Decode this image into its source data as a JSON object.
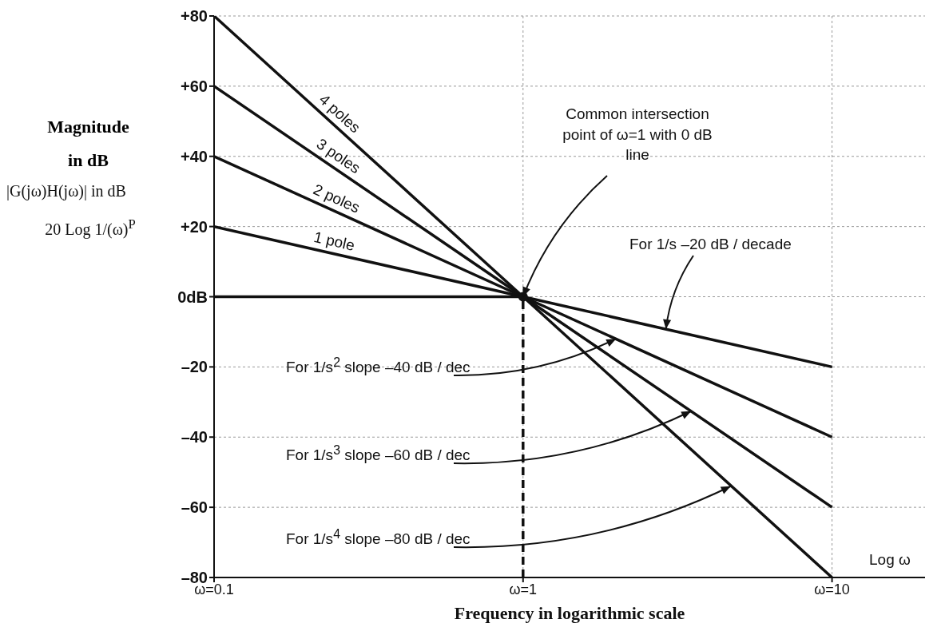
{
  "chart_data": {
    "type": "line",
    "xlabel": "Frequency in logarithmic scale",
    "ylabel": "Magnitude in dB",
    "log": "x",
    "xlim": [
      0.1,
      20
    ],
    "xticks": [
      {
        "value": 0.1,
        "label": "ω=0.1"
      },
      {
        "value": 1,
        "label": "ω=1"
      },
      {
        "value": 10,
        "label": "ω=10"
      }
    ],
    "ylim": [
      -80,
      80
    ],
    "yticks": [
      {
        "value": 80,
        "label": "+80"
      },
      {
        "value": 60,
        "label": "+60"
      },
      {
        "value": 40,
        "label": "+40"
      },
      {
        "value": 20,
        "label": "+20"
      },
      {
        "value": 0,
        "label": "0dB"
      },
      {
        "value": -20,
        "label": "–20"
      },
      {
        "value": -40,
        "label": "–40"
      },
      {
        "value": -60,
        "label": "–60"
      },
      {
        "value": -80,
        "label": "–80"
      }
    ],
    "grid": true,
    "marker": "none",
    "line_style": "solid",
    "series": [
      {
        "name": "1 pole",
        "color": "#111111",
        "x": [
          0.1,
          1,
          10
        ],
        "values": [
          20,
          0,
          -20
        ]
      },
      {
        "name": "2 poles",
        "color": "#111111",
        "x": [
          0.1,
          1,
          10
        ],
        "values": [
          40,
          0,
          -40
        ]
      },
      {
        "name": "3 poles",
        "color": "#111111",
        "x": [
          0.1,
          1,
          10
        ],
        "values": [
          60,
          0,
          -60
        ]
      },
      {
        "name": "4 poles",
        "color": "#111111",
        "x": [
          0.1,
          1,
          10
        ],
        "values": [
          80,
          0,
          -80
        ]
      },
      {
        "color": "#111111",
        "x": [
          0.1,
          1
        ],
        "values": [
          0,
          0
        ]
      },
      {
        "color": "#111111",
        "x": [
          1,
          1
        ],
        "values": [
          -80,
          0
        ],
        "line_style": "dashed"
      },
      {
        "type": "scatter",
        "color": "#111111",
        "x": [
          1
        ],
        "values": [
          0
        ],
        "marker": "circle"
      }
    ],
    "annotations": [
      {
        "text": "Common intersection point of ω=1 with 0 dB line",
        "x": 1,
        "y": 0
      },
      {
        "text": "For 1/s –20 dB / decade",
        "x": 2.9,
        "y": -9.2
      },
      {
        "text": "For 1/s$^{2}$ slope –40 dB / dec",
        "x": 2,
        "y": -12
      },
      {
        "text": "For 1/s$^{3}$ slope –60 dB / dec",
        "x": 3.5,
        "y": -32.6
      },
      {
        "text": "For 1/s$^{4}$ slope –80 dB / dec",
        "x": 4.7,
        "y": -54
      },
      "|G(jω)H(jω)| in dB",
      "20 Log 1/(ω)$^{P}$",
      "Log ω"
    ]
  }
}
